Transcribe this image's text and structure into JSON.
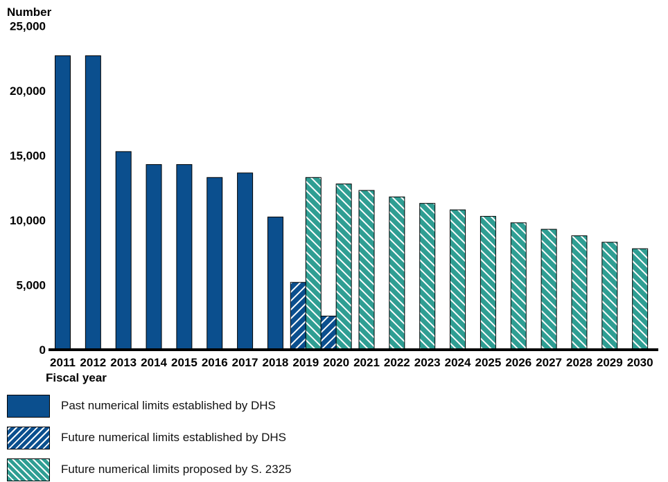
{
  "chart_data": {
    "type": "bar",
    "title": "",
    "ylabel": "Number",
    "xlabel": "Fiscal year",
    "ylim": [
      0,
      25000
    ],
    "yticks": [
      "0",
      "5,000",
      "10,000",
      "15,000",
      "20,000",
      "25,000"
    ],
    "ytick_values": [
      0,
      5000,
      10000,
      15000,
      20000,
      25000
    ],
    "categories": [
      "2011",
      "2012",
      "2013",
      "2014",
      "2015",
      "2016",
      "2017",
      "2018",
      "2019",
      "2020",
      "2021",
      "2022",
      "2023",
      "2024",
      "2025",
      "2026",
      "2027",
      "2028",
      "2029",
      "2030"
    ],
    "series": [
      {
        "name": "Past numerical limits established by DHS",
        "style": "solid",
        "color": "#0b4f8e",
        "values": [
          22700,
          22700,
          15300,
          14300,
          14300,
          13300,
          13650,
          10250,
          null,
          null,
          null,
          null,
          null,
          null,
          null,
          null,
          null,
          null,
          null,
          null
        ]
      },
      {
        "name": "Future numerical limits established by DHS",
        "style": "hatch-dark",
        "color": "#0b4f8e",
        "values": [
          null,
          null,
          null,
          null,
          null,
          null,
          null,
          null,
          5200,
          2600,
          null,
          null,
          null,
          null,
          null,
          null,
          null,
          null,
          null,
          null
        ]
      },
      {
        "name": "Future numerical limits proposed by S. 2325",
        "style": "hatch-teal",
        "color": "#2f9e93",
        "values": [
          null,
          null,
          null,
          null,
          null,
          null,
          null,
          null,
          13300,
          12800,
          12300,
          11800,
          11300,
          10800,
          10300,
          9800,
          9300,
          8800,
          8300,
          7800
        ]
      }
    ],
    "legend_position": "bottom-left",
    "grid": false
  }
}
